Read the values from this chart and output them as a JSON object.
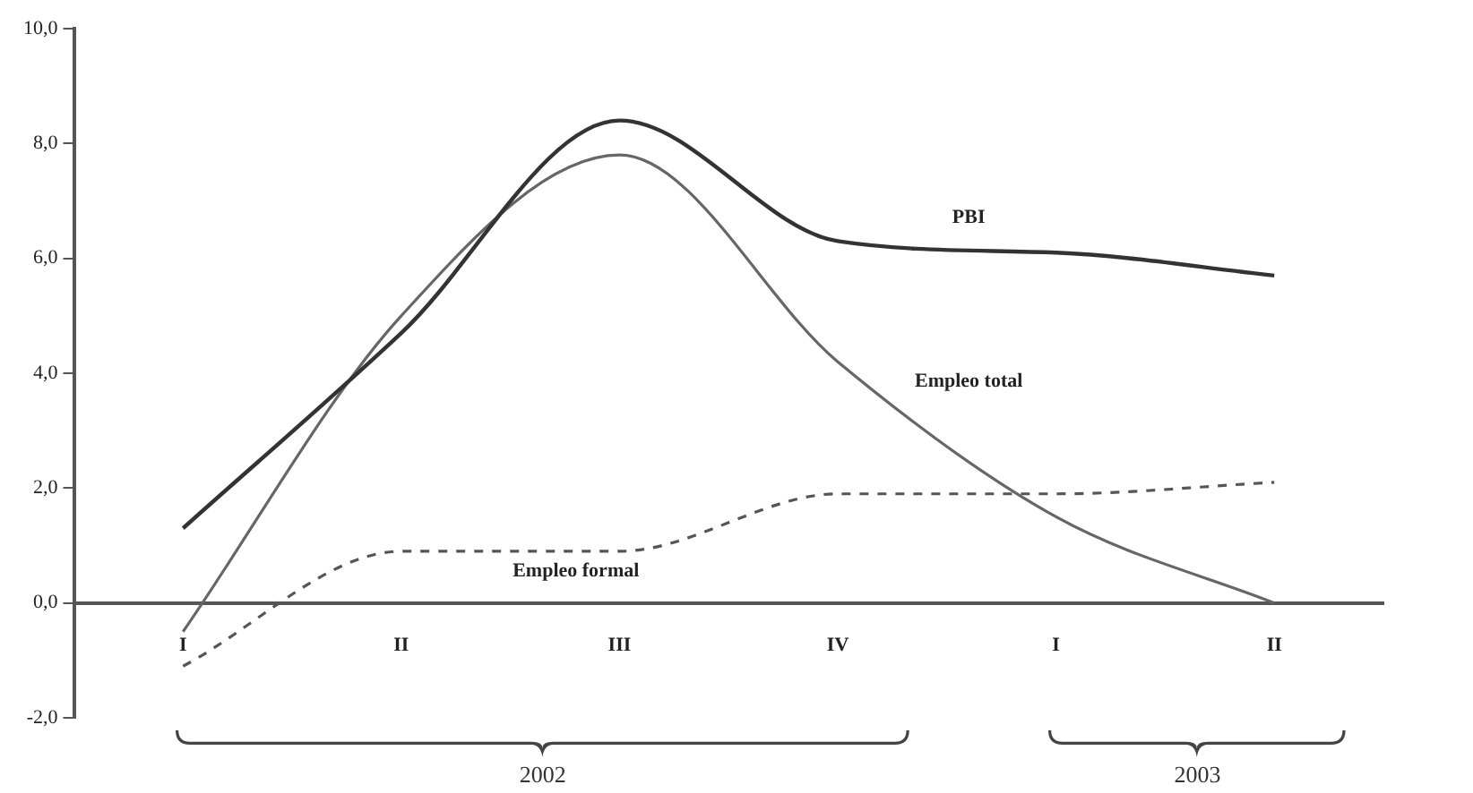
{
  "chart_data": {
    "type": "line",
    "categories": [
      "I",
      "II",
      "III",
      "IV",
      "I",
      "II"
    ],
    "series": [
      {
        "name": "PBI",
        "color": "#333333",
        "values": [
          1.3,
          4.7,
          8.4,
          6.3,
          6.1,
          5.7
        ]
      },
      {
        "name": "Empleo total",
        "color": "#666666",
        "values": [
          -0.5,
          5.0,
          7.8,
          4.2,
          1.5,
          0.0
        ]
      },
      {
        "name": "Empleo formal",
        "color": "#555555",
        "line_style": "dashed",
        "values": [
          -1.1,
          0.9,
          0.9,
          1.9,
          1.9,
          2.1
        ]
      }
    ],
    "ylim": [
      -2,
      10
    ],
    "yticks": [
      {
        "value": -2,
        "label": "-2,0"
      },
      {
        "value": 0,
        "label": "0,0"
      },
      {
        "value": 2,
        "label": "2,0"
      },
      {
        "value": 4,
        "label": "4,0"
      },
      {
        "value": 6,
        "label": "6,0"
      },
      {
        "value": 8,
        "label": "8,0"
      },
      {
        "value": 10,
        "label": "10,0"
      }
    ],
    "annotations": [
      "2002",
      "2003"
    ],
    "grid": false,
    "legend": false,
    "marker": "none",
    "line_style": "solid"
  }
}
